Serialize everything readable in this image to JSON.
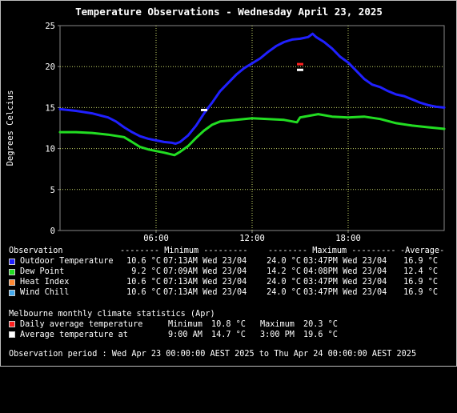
{
  "chart_data": {
    "type": "line",
    "title": "Temperature Observations - Wednesday April 23, 2025",
    "ylabel": "Degrees Celcius",
    "xlabel": "",
    "x_range_hours": [
      0,
      24
    ],
    "ylim": [
      0,
      25
    ],
    "x_ticks": [
      {
        "hour": 6,
        "label": "06:00"
      },
      {
        "hour": 12,
        "label": "12:00"
      },
      {
        "hour": 18,
        "label": "18:00"
      }
    ],
    "y_ticks": [
      0,
      5,
      10,
      15,
      20,
      25
    ],
    "grid": true,
    "colors": {
      "background": "#000000",
      "plot_border": "#888888",
      "grid": "#c8d86a",
      "outdoor": "#2020ff",
      "dewpoint": "#22dd22",
      "heat_index": "#ff8833",
      "wind_chill": "#44aaee",
      "daily_avg_marker": "#ff2020",
      "avg_at_marker": "#ffffff"
    },
    "series": [
      {
        "name": "Outdoor Temperature",
        "color": "#2020ff",
        "points": [
          [
            0,
            14.8
          ],
          [
            1,
            14.6
          ],
          [
            2,
            14.3
          ],
          [
            3,
            13.8
          ],
          [
            3.5,
            13.3
          ],
          [
            4,
            12.6
          ],
          [
            4.5,
            12.0
          ],
          [
            5,
            11.5
          ],
          [
            5.5,
            11.2
          ],
          [
            6,
            11.0
          ],
          [
            6.5,
            10.8
          ],
          [
            7,
            10.7
          ],
          [
            7.22,
            10.6
          ],
          [
            7.5,
            10.8
          ],
          [
            8,
            11.6
          ],
          [
            8.5,
            12.8
          ],
          [
            9,
            14.3
          ],
          [
            9.5,
            15.6
          ],
          [
            10,
            17.0
          ],
          [
            10.5,
            18.0
          ],
          [
            11,
            19.0
          ],
          [
            11.5,
            19.8
          ],
          [
            12,
            20.4
          ],
          [
            12.5,
            21.0
          ],
          [
            13,
            21.8
          ],
          [
            13.5,
            22.5
          ],
          [
            14,
            23.0
          ],
          [
            14.5,
            23.3
          ],
          [
            15,
            23.4
          ],
          [
            15.5,
            23.6
          ],
          [
            15.78,
            24.0
          ],
          [
            16,
            23.6
          ],
          [
            16.5,
            23.0
          ],
          [
            17,
            22.2
          ],
          [
            17.5,
            21.2
          ],
          [
            18,
            20.5
          ],
          [
            18.5,
            19.5
          ],
          [
            19,
            18.5
          ],
          [
            19.5,
            17.8
          ],
          [
            20,
            17.5
          ],
          [
            20.5,
            17.0
          ],
          [
            21,
            16.6
          ],
          [
            21.5,
            16.4
          ],
          [
            22,
            16.0
          ],
          [
            22.5,
            15.6
          ],
          [
            23,
            15.3
          ],
          [
            23.5,
            15.1
          ],
          [
            24,
            15.0
          ]
        ]
      },
      {
        "name": "Dew Point",
        "color": "#22dd22",
        "points": [
          [
            0,
            12.0
          ],
          [
            1,
            12.0
          ],
          [
            2,
            11.9
          ],
          [
            3,
            11.7
          ],
          [
            4,
            11.4
          ],
          [
            4.5,
            10.8
          ],
          [
            5,
            10.2
          ],
          [
            5.5,
            9.9
          ],
          [
            6,
            9.7
          ],
          [
            6.5,
            9.5
          ],
          [
            7.15,
            9.2
          ],
          [
            7.5,
            9.6
          ],
          [
            8,
            10.3
          ],
          [
            8.5,
            11.3
          ],
          [
            9,
            12.2
          ],
          [
            9.5,
            12.9
          ],
          [
            10,
            13.3
          ],
          [
            11,
            13.5
          ],
          [
            12,
            13.7
          ],
          [
            13,
            13.6
          ],
          [
            14,
            13.5
          ],
          [
            14.8,
            13.2
          ],
          [
            15,
            13.8
          ],
          [
            16.13,
            14.2
          ],
          [
            17,
            13.9
          ],
          [
            18,
            13.8
          ],
          [
            19,
            13.9
          ],
          [
            20,
            13.6
          ],
          [
            21,
            13.1
          ],
          [
            22,
            12.8
          ],
          [
            23,
            12.6
          ],
          [
            24,
            12.4
          ]
        ]
      }
    ],
    "markers": [
      {
        "name": "Daily average temperature",
        "hour": 15,
        "value": 20.3,
        "color": "#ff2020"
      },
      {
        "name": "Average temperature at",
        "hour": 9,
        "value": 14.7,
        "color": "#ffffff"
      },
      {
        "name": "Average temperature at",
        "hour": 15,
        "value": 19.6,
        "color": "#ffffff"
      }
    ]
  },
  "legend": {
    "header": {
      "observation": "Observation",
      "minimum": "-------- Minimum ---------",
      "maximum": "-------- Maximum ---------",
      "average": "-Average-"
    },
    "rows": [
      {
        "label": "Outdoor Temperature",
        "color": "#2020ff",
        "min": "10.6 °C",
        "min_time": "07:13AM Wed 23/04",
        "max": "24.0 °C",
        "max_time": "03:47PM Wed 23/04",
        "avg": "16.9 °C"
      },
      {
        "label": "Dew Point",
        "color": "#22dd22",
        "min": "9.2 °C",
        "min_time": "07:09AM Wed 23/04",
        "max": "14.2 °C",
        "max_time": "04:08PM Wed 23/04",
        "avg": "12.4 °C"
      },
      {
        "label": "Heat Index",
        "color": "#ff8833",
        "min": "10.6 °C",
        "min_time": "07:13AM Wed 23/04",
        "max": "24.0 °C",
        "max_time": "03:47PM Wed 23/04",
        "avg": "16.9 °C"
      },
      {
        "label": "Wind Chill",
        "color": "#44aaee",
        "min": "10.6 °C",
        "min_time": "07:13AM Wed 23/04",
        "max": "24.0 °C",
        "max_time": "03:47PM Wed 23/04",
        "avg": "16.9 °C"
      }
    ]
  },
  "climate": {
    "title": "Melbourne monthly climate statistics (Apr)",
    "daily_avg": {
      "label": "Daily average temperature",
      "color": "#ff2020",
      "min_label": "Minimum",
      "min": "10.8 °C",
      "max_label": "Maximum",
      "max": "20.3 °C"
    },
    "avg_at": {
      "label": "Average temperature at",
      "color": "#ffffff",
      "t1": "9:00 AM",
      "v1": "14.7 °C",
      "t2": "3:00 PM",
      "v2": "19.6 °C"
    }
  },
  "period": "Observation period : Wed Apr 23 00:00:00 AEST 2025 to Thu Apr 24 00:00:00 AEST 2025"
}
